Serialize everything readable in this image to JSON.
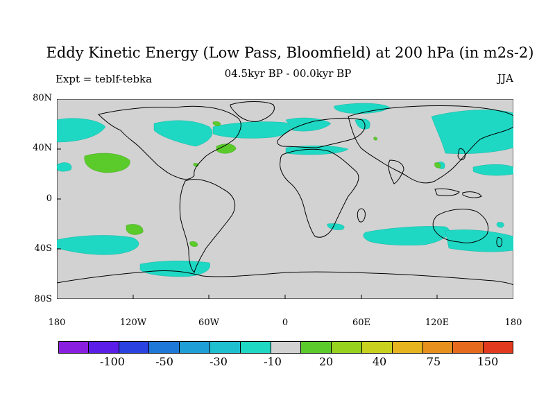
{
  "title": "Eddy Kinetic Energy (Low Pass, Bloomfield) at 200 hPa (in m2s-2)",
  "subtitle": "04.5kyr BP - 00.0kyr BP",
  "left_label": "Expt = teblf-tebka",
  "right_label": "JJA",
  "y_ticks": [
    "80N",
    "40N",
    "0",
    "40S",
    "80S"
  ],
  "x_ticks": [
    "180",
    "120W",
    "60W",
    "0",
    "60E",
    "120E",
    "180"
  ],
  "colorbar": {
    "colors": [
      "#8a1ee0",
      "#5a1ee8",
      "#2a42e0",
      "#1e78d8",
      "#1ea0d6",
      "#1ec0d0",
      "#1ed8c4",
      "#d2d2d2",
      "#5acb2a",
      "#96d21e",
      "#c8d21e",
      "#e6b41e",
      "#e8901e",
      "#e66a1e",
      "#e23a1e"
    ],
    "labels": [
      "-100",
      "-50",
      "-30",
      "-10",
      "20",
      "40",
      "75",
      "150"
    ]
  },
  "map": {
    "background": "#d2d2d2",
    "negative_color": "#1ed8c4",
    "positive_color": "#5acb2a"
  }
}
